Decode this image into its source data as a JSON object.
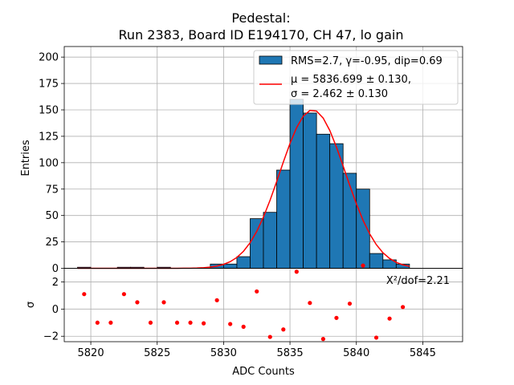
{
  "chart_data": {
    "type": "bar",
    "title_line1": "Pedestal:",
    "title_line2": "Run 2383, Board ID E194170, CH 47, lo gain",
    "xlabel": "ADC Counts",
    "ylabel_top": "Entries",
    "ylabel_bottom": "σ",
    "xlim": [
      5818,
      5848
    ],
    "ylim_top": [
      0,
      210
    ],
    "ylim_bottom": [
      -2.4,
      3.0
    ],
    "xticks": [
      5820,
      5825,
      5830,
      5835,
      5840,
      5845
    ],
    "yticks_top": [
      0,
      25,
      50,
      75,
      100,
      125,
      150,
      175,
      200
    ],
    "yticks_bottom": [
      -2,
      0,
      2
    ],
    "grid": true,
    "bar_color": "#1f77b4",
    "fit_color": "#ff0000",
    "legend": {
      "position": "top-right",
      "hist_label": "RMS=2.7, γ=-0.95, dip=0.69",
      "fit_label_line1": "μ = 5836.699 ± 0.130,",
      "fit_label_line2": "σ = 2.462 ± 0.130"
    },
    "chi2_label": "X²/dof=2.21",
    "histogram": {
      "bin_width": 1,
      "bin_lefts": [
        5819,
        5820,
        5821,
        5822,
        5823,
        5824,
        5825,
        5826,
        5827,
        5828,
        5829,
        5830,
        5831,
        5832,
        5833,
        5834,
        5835,
        5836,
        5837,
        5838,
        5839,
        5840,
        5841,
        5842,
        5843
      ],
      "counts": [
        1,
        0,
        0,
        1,
        1,
        0,
        1,
        0,
        0,
        0,
        4,
        4,
        11,
        47,
        53,
        93,
        160,
        147,
        127,
        118,
        90,
        75,
        14,
        8,
        4
      ]
    },
    "fit": {
      "mu": 5836.699,
      "sigma": 2.462,
      "amplitude": 150,
      "x_range": [
        5819,
        5844
      ]
    },
    "residuals": {
      "x": [
        5819.5,
        5820.5,
        5821.5,
        5822.5,
        5823.5,
        5824.5,
        5825.5,
        5826.5,
        5827.5,
        5828.5,
        5829.5,
        5830.5,
        5831.5,
        5832.5,
        5833.5,
        5834.5,
        5835.5,
        5836.5,
        5837.5,
        5838.5,
        5839.5,
        5840.5,
        5841.5,
        5842.5,
        5843.5
      ],
      "y": [
        1.1,
        -1.0,
        -1.0,
        1.1,
        0.5,
        -1.0,
        0.5,
        -1.0,
        -1.0,
        -1.05,
        0.65,
        -1.1,
        -1.3,
        1.3,
        -2.05,
        -1.5,
        2.75,
        0.45,
        -2.2,
        -0.65,
        0.4,
        3.2,
        -2.1,
        -0.7,
        0.15
      ]
    }
  }
}
